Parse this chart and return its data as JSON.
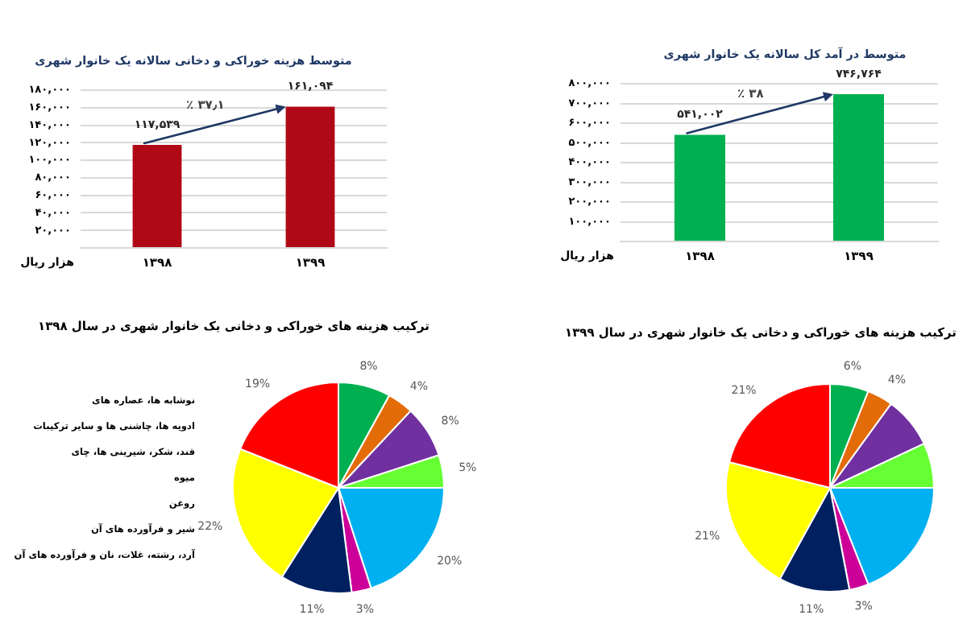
{
  "chart_data": [
    {
      "type": "bar",
      "title": "متوسط هزینه خوراکی و دخانی سالانه یک خانوار شهری",
      "ylabel": "هزار ریال",
      "categories": [
        "۱۳۹۸",
        "۱۳۹۹"
      ],
      "values": [
        117539,
        161094
      ],
      "value_labels": [
        "۱۱۷,۵۳۹",
        "۱۶۱,۰۹۴"
      ],
      "color": "#b00816",
      "ylim": [
        0,
        180000
      ],
      "yticks": [
        {
          "value": 0,
          "label": null
        },
        {
          "value": 20000,
          "label": "۲۰,۰۰۰"
        },
        {
          "value": 40000,
          "label": "۴۰,۰۰۰"
        },
        {
          "value": 60000,
          "label": "۶۰,۰۰۰"
        },
        {
          "value": 80000,
          "label": "۸۰,۰۰۰"
        },
        {
          "value": 100000,
          "label": "۱۰۰,۰۰۰"
        },
        {
          "value": 120000,
          "label": "۱۲۰,۰۰۰"
        },
        {
          "value": 140000,
          "label": "۱۴۰,۰۰۰"
        },
        {
          "value": 160000,
          "label": "۱۶۰,۰۰۰"
        },
        {
          "value": 180000,
          "label": "۱۸۰,۰۰۰"
        }
      ],
      "grid": "y",
      "annotations": [
        "٪ ۳۷٫۱"
      ]
    },
    {
      "type": "bar",
      "title": "متوسط در آمد کل سالانه یک خانوار شهری",
      "ylabel": "هزار ریال",
      "categories": [
        "۱۳۹۸",
        "۱۳۹۹"
      ],
      "values": [
        541002,
        746764
      ],
      "value_labels": [
        "۵۴۱,۰۰۲",
        "۷۴۶,۷۶۴"
      ],
      "color": "#00b050",
      "ylim": [
        0,
        800000
      ],
      "yticks": [
        {
          "value": 0,
          "label": null
        },
        {
          "value": 100000,
          "label": "۱۰۰,۰۰۰"
        },
        {
          "value": 200000,
          "label": "۲۰۰,۰۰۰"
        },
        {
          "value": 300000,
          "label": "۳۰۰,۰۰۰"
        },
        {
          "value": 400000,
          "label": "۴۰۰,۰۰۰"
        },
        {
          "value": 500000,
          "label": "۵۰۰,۰۰۰"
        },
        {
          "value": 600000,
          "label": "۶۰۰,۰۰۰"
        },
        {
          "value": 700000,
          "label": "۷۰۰,۰۰۰"
        },
        {
          "value": 800000,
          "label": "۸۰۰,۰۰۰"
        }
      ],
      "grid": "y",
      "annotations": [
        "٪ ۳۸"
      ]
    },
    {
      "type": "pie",
      "title": "ترکیب هزینه های خوراکی و دخانی یک خانوار شهری در سال ۱۳۹۸",
      "categories": [
        null,
        null,
        null,
        null,
        null,
        null,
        null,
        null,
        null
      ],
      "values": [
        8,
        4,
        8,
        5,
        20,
        3,
        11,
        22,
        19
      ],
      "value_labels": [
        "8%",
        "4%",
        "8%",
        "5%",
        "20%",
        "3%",
        "11%",
        "22%",
        "19%"
      ],
      "colors": [
        "#00b050",
        "#e36c09",
        "#7030a0",
        "#66ff33",
        "#00b0f0",
        "#cc0099",
        "#002060",
        "#ffff00",
        "#ff0000"
      ],
      "annotations": [
        "نوشابه ها، عصاره های",
        "ادویه ها، چاشنی ها و سایر ترکیبات",
        "قند، شکر، شیرینی ها، چای",
        "میوه",
        "روغن",
        "شیر و فرآورده های آن",
        "آرد، رشته، غلات، نان و فرآورده های آن"
      ]
    },
    {
      "type": "pie",
      "title": "ترکیب هزینه های خوراکی و دخانی یک خانوار شهری در سال ۱۳۹۹",
      "categories": [
        null,
        null,
        null,
        null,
        null,
        null,
        null,
        null,
        null
      ],
      "values": [
        6,
        4,
        8,
        7,
        19,
        3,
        11,
        21,
        21
      ],
      "value_labels": [
        "6%",
        "4%",
        null,
        null,
        null,
        "3%",
        "11%",
        "21%",
        "21%"
      ],
      "colors": [
        "#00b050",
        "#e36c09",
        "#7030a0",
        "#66ff33",
        "#00b0f0",
        "#cc0099",
        "#002060",
        "#ffff00",
        "#ff0000"
      ]
    }
  ]
}
